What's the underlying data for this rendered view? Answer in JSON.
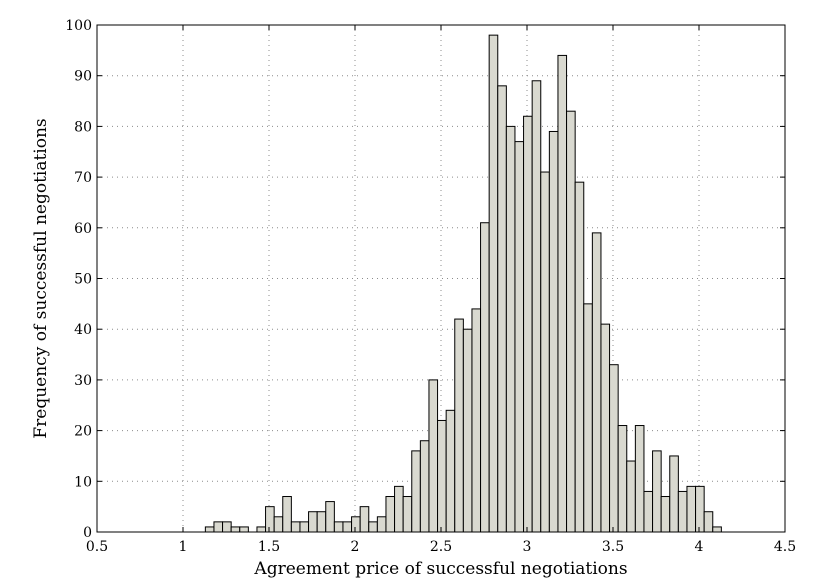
{
  "chart_data": {
    "type": "bar",
    "title": "",
    "xlabel": "Agreement price of successful negotiations",
    "ylabel": "Frequency of successful negotiations",
    "xlim": [
      0.5,
      4.5
    ],
    "ylim": [
      0,
      100
    ],
    "xticks": [
      0.5,
      1,
      1.5,
      2,
      2.5,
      3,
      3.5,
      4,
      4.5
    ],
    "xtick_labels": [
      "0.5",
      "1",
      "1.5",
      "2",
      "2.5",
      "3",
      "3.5",
      "4",
      "4.5"
    ],
    "yticks": [
      0,
      10,
      20,
      30,
      40,
      50,
      60,
      70,
      80,
      90,
      100
    ],
    "ytick_labels": [
      "0",
      "10",
      "20",
      "30",
      "40",
      "50",
      "60",
      "70",
      "80",
      "90",
      "100"
    ],
    "grid": true,
    "bin_start": 1.13,
    "bin_width": 0.05,
    "values": [
      1,
      2,
      2,
      1,
      1,
      0,
      1,
      5,
      3,
      7,
      2,
      2,
      4,
      4,
      6,
      2,
      2,
      3,
      5,
      2,
      3,
      7,
      9,
      7,
      16,
      18,
      30,
      22,
      24,
      42,
      40,
      44,
      61,
      98,
      88,
      80,
      77,
      82,
      89,
      71,
      79,
      94,
      83,
      69,
      45,
      59,
      41,
      33,
      21,
      14,
      21,
      8,
      16,
      7,
      15,
      8,
      9,
      9,
      4,
      1
    ],
    "colors": {
      "bar_fill": "#d9d9d0",
      "bar_edge": "#000000",
      "grid": "#8c8c8c"
    }
  }
}
